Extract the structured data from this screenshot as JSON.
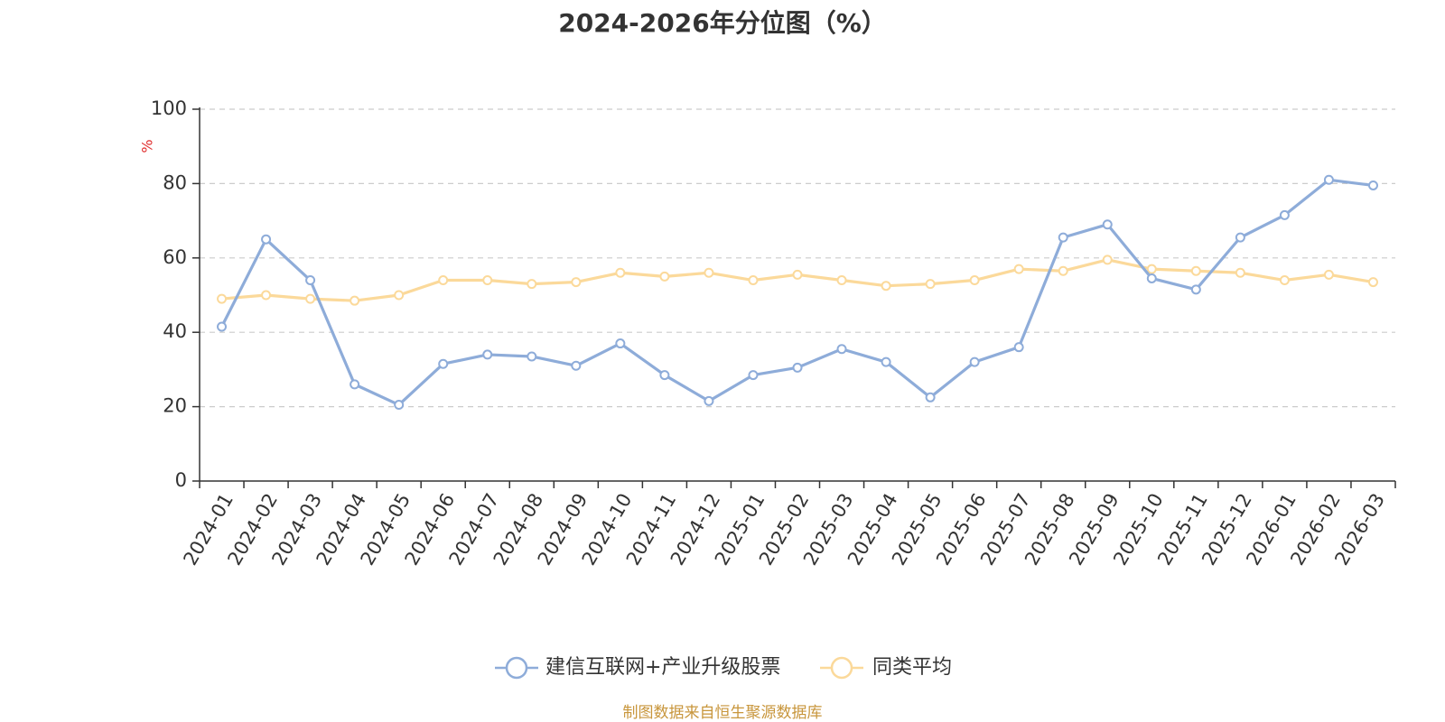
{
  "chart_data": {
    "type": "line",
    "title": "2024-2026年分位图（%）",
    "ylabel": "%",
    "ylim": [
      0,
      100
    ],
    "yticks": [
      0,
      20,
      40,
      60,
      80,
      100
    ],
    "grid": true,
    "legend_position": "bottom",
    "categories": [
      "2024-01",
      "2024-02",
      "2024-03",
      "2024-04",
      "2024-05",
      "2024-06",
      "2024-07",
      "2024-08",
      "2024-09",
      "2024-10",
      "2024-11",
      "2024-12",
      "2025-01",
      "2025-02",
      "2025-03",
      "2025-04",
      "2025-05",
      "2025-06",
      "2025-07",
      "2025-08",
      "2025-09",
      "2025-10",
      "2025-11",
      "2025-12",
      "2026-01",
      "2026-02",
      "2026-03"
    ],
    "series": [
      {
        "name": "建信互联网+产业升级股票",
        "color": "#8eacd9",
        "values": [
          41.5,
          65.0,
          54.0,
          26.0,
          20.5,
          31.5,
          34.0,
          33.5,
          31.0,
          37.0,
          28.5,
          21.5,
          28.5,
          30.5,
          35.5,
          32.0,
          22.5,
          32.0,
          36.0,
          65.5,
          69.0,
          54.5,
          51.5,
          65.5,
          71.5,
          81.0,
          79.5
        ]
      },
      {
        "name": "同类平均",
        "color": "#fbd99a",
        "values": [
          49.0,
          50.0,
          49.0,
          48.5,
          50.0,
          54.0,
          54.0,
          53.0,
          53.5,
          56.0,
          55.0,
          56.0,
          54.0,
          55.5,
          54.0,
          52.5,
          53.0,
          54.0,
          57.0,
          56.5,
          59.5,
          57.0,
          56.5,
          56.0,
          54.0,
          55.5,
          53.5
        ]
      }
    ]
  },
  "source": "制图数据来自恒生聚源数据库"
}
